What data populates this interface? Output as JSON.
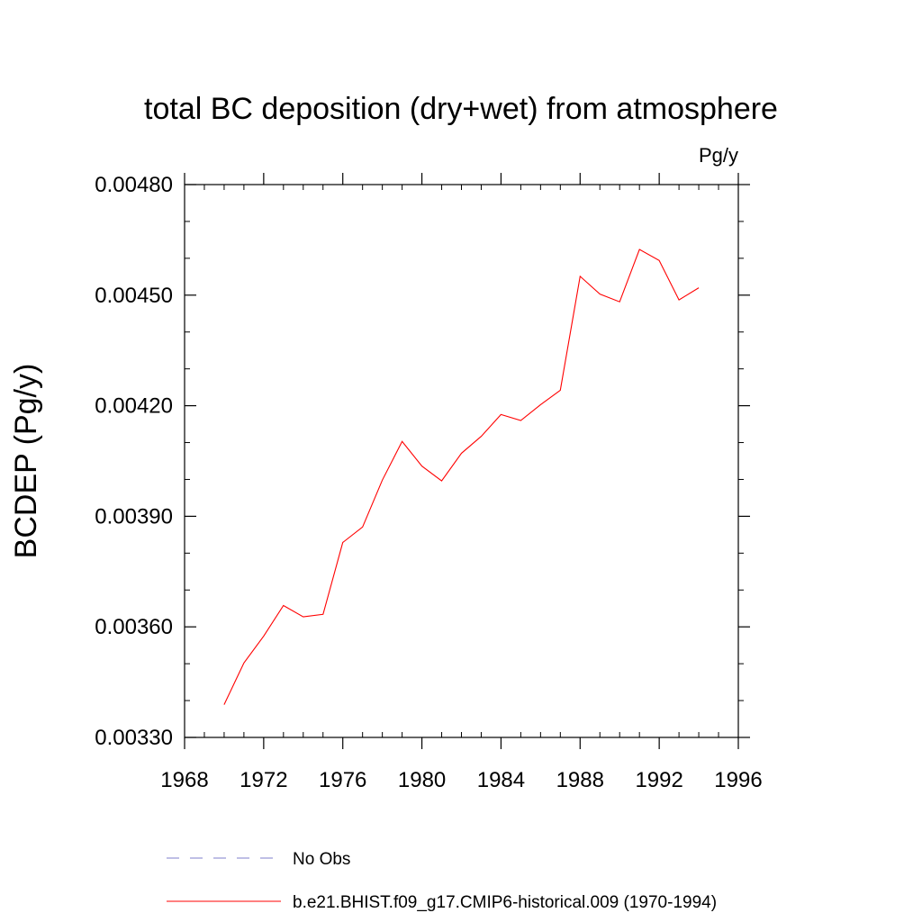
{
  "chart_data": {
    "type": "line",
    "title": "total BC deposition (dry+wet) from atmosphere",
    "units": "Pg/y",
    "xlabel": "",
    "ylabel": "BCDEP  (Pg/y)",
    "xlim": [
      1968,
      1996
    ],
    "ylim": [
      0.0033,
      0.0048
    ],
    "xticks": [
      1968,
      1972,
      1976,
      1980,
      1984,
      1988,
      1992,
      1996
    ],
    "xtick_labels": [
      "1968",
      "1972",
      "1976",
      "1980",
      "1984",
      "1988",
      "1992",
      "1996"
    ],
    "yticks": [
      0.0033,
      0.0036,
      0.0039,
      0.0042,
      0.0045,
      0.0048
    ],
    "ytick_labels": [
      "0.00330",
      "0.00360",
      "0.00390",
      "0.00420",
      "0.00450",
      "0.00480"
    ],
    "grid": false,
    "legend_position": "bottom",
    "series": [
      {
        "name": "No Obs",
        "color": "#7f7fcc",
        "style": "dashed",
        "x": [],
        "values": []
      },
      {
        "name": "b.e21.BHIST.f09_g17.CMIP6-historical.009 (1970-1994)",
        "color": "#ff0000",
        "style": "solid",
        "x": [
          1970,
          1971,
          1972,
          1973,
          1974,
          1975,
          1976,
          1977,
          1978,
          1979,
          1980,
          1981,
          1982,
          1983,
          1984,
          1985,
          1986,
          1987,
          1988,
          1989,
          1990,
          1991,
          1992,
          1993,
          1994
        ],
        "values": [
          0.003389,
          0.003502,
          0.003575,
          0.003658,
          0.003627,
          0.003634,
          0.003829,
          0.003871,
          0.003998,
          0.004103,
          0.004036,
          0.003996,
          0.004071,
          0.004117,
          0.004176,
          0.00416,
          0.004203,
          0.004242,
          0.004551,
          0.004503,
          0.004482,
          0.004624,
          0.004594,
          0.004487,
          0.00452
        ]
      }
    ]
  }
}
